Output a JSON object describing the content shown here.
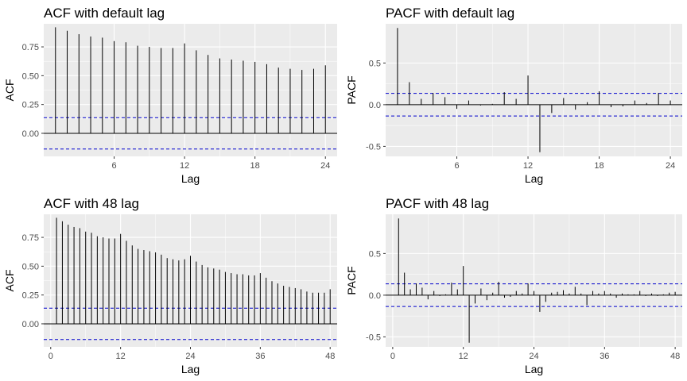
{
  "chart_data": [
    {
      "type": "bar",
      "title": "ACF with default lag",
      "xlabel": "Lag",
      "ylabel": "ACF",
      "xlim": [
        0,
        25
      ],
      "ylim": [
        -0.2,
        0.95
      ],
      "xticks": [
        6,
        12,
        18,
        24
      ],
      "yticks": [
        "0.00",
        "0.25",
        "0.50",
        "0.75"
      ],
      "ci": 0.136,
      "lags": [
        1,
        2,
        3,
        4,
        5,
        6,
        7,
        8,
        9,
        10,
        11,
        12,
        13,
        14,
        15,
        16,
        17,
        18,
        19,
        20,
        21,
        22,
        23,
        24
      ],
      "values": [
        0.92,
        0.89,
        0.86,
        0.84,
        0.83,
        0.8,
        0.79,
        0.76,
        0.75,
        0.74,
        0.74,
        0.78,
        0.72,
        0.68,
        0.65,
        0.64,
        0.63,
        0.62,
        0.6,
        0.57,
        0.56,
        0.55,
        0.56,
        0.59
      ]
    },
    {
      "type": "bar",
      "title": "PACF with default lag",
      "xlabel": "Lag",
      "ylabel": "PACF",
      "xlim": [
        0,
        25
      ],
      "ylim": [
        -0.62,
        0.97
      ],
      "xticks": [
        6,
        12,
        18,
        24
      ],
      "yticks": [
        "-0.5",
        "0.0",
        "0.5"
      ],
      "ci": 0.136,
      "lags": [
        1,
        2,
        3,
        4,
        5,
        6,
        7,
        8,
        9,
        10,
        11,
        12,
        13,
        14,
        15,
        16,
        17,
        18,
        19,
        20,
        21,
        22,
        23,
        24
      ],
      "values": [
        0.92,
        0.27,
        0.07,
        0.14,
        0.09,
        -0.05,
        0.05,
        -0.01,
        0.01,
        0.15,
        0.07,
        0.35,
        -0.57,
        -0.1,
        0.08,
        -0.06,
        0.03,
        0.16,
        -0.03,
        -0.02,
        0.05,
        0.02,
        0.14,
        0.05
      ]
    },
    {
      "type": "bar",
      "title": "ACF with 48 lag",
      "xlabel": "Lag",
      "ylabel": "ACF",
      "xlim": [
        -1.2,
        49.2
      ],
      "ylim": [
        -0.2,
        0.95
      ],
      "xticks": [
        0,
        12,
        24,
        36,
        48
      ],
      "yticks": [
        "0.00",
        "0.25",
        "0.50",
        "0.75"
      ],
      "ci": 0.136,
      "lags": [
        1,
        2,
        3,
        4,
        5,
        6,
        7,
        8,
        9,
        10,
        11,
        12,
        13,
        14,
        15,
        16,
        17,
        18,
        19,
        20,
        21,
        22,
        23,
        24,
        25,
        26,
        27,
        28,
        29,
        30,
        31,
        32,
        33,
        34,
        35,
        36,
        37,
        38,
        39,
        40,
        41,
        42,
        43,
        44,
        45,
        46,
        47,
        48
      ],
      "values": [
        0.92,
        0.89,
        0.86,
        0.84,
        0.83,
        0.8,
        0.79,
        0.76,
        0.75,
        0.74,
        0.74,
        0.78,
        0.72,
        0.68,
        0.65,
        0.64,
        0.63,
        0.62,
        0.6,
        0.57,
        0.56,
        0.55,
        0.56,
        0.59,
        0.54,
        0.51,
        0.49,
        0.48,
        0.47,
        0.45,
        0.44,
        0.43,
        0.43,
        0.42,
        0.42,
        0.44,
        0.4,
        0.37,
        0.35,
        0.33,
        0.32,
        0.31,
        0.3,
        0.28,
        0.27,
        0.27,
        0.27,
        0.3
      ]
    },
    {
      "type": "bar",
      "title": "PACF with 48 lag",
      "xlabel": "Lag",
      "ylabel": "PACF",
      "xlim": [
        -1.2,
        49.2
      ],
      "ylim": [
        -0.62,
        0.97
      ],
      "xticks": [
        0,
        12,
        24,
        36,
        48
      ],
      "yticks": [
        "-0.5",
        "0.0",
        "0.5"
      ],
      "ci": 0.136,
      "lags": [
        1,
        2,
        3,
        4,
        5,
        6,
        7,
        8,
        9,
        10,
        11,
        12,
        13,
        14,
        15,
        16,
        17,
        18,
        19,
        20,
        21,
        22,
        23,
        24,
        25,
        26,
        27,
        28,
        29,
        30,
        31,
        32,
        33,
        34,
        35,
        36,
        37,
        38,
        39,
        40,
        41,
        42,
        43,
        44,
        45,
        46,
        47,
        48
      ],
      "values": [
        0.92,
        0.27,
        0.07,
        0.14,
        0.09,
        -0.05,
        0.05,
        -0.01,
        0.01,
        0.15,
        0.07,
        0.35,
        -0.57,
        -0.1,
        0.08,
        -0.06,
        0.03,
        0.16,
        -0.03,
        -0.02,
        0.05,
        0.02,
        0.14,
        0.05,
        -0.2,
        -0.08,
        0.03,
        0.04,
        0.06,
        0.02,
        0.1,
        0.02,
        -0.12,
        0.05,
        0.02,
        0.05,
        0.02,
        -0.03,
        0.02,
        0.01,
        0.01,
        0.05,
        -0.01,
        0.02,
        -0.01,
        0.01,
        0.03,
        0.04
      ]
    }
  ],
  "colors": {
    "panel_background": "#ebebeb",
    "gridline": "#ffffff",
    "bar": "#000000",
    "confidence_line": "#0000cc",
    "tick_label": "#4d4d4d"
  }
}
